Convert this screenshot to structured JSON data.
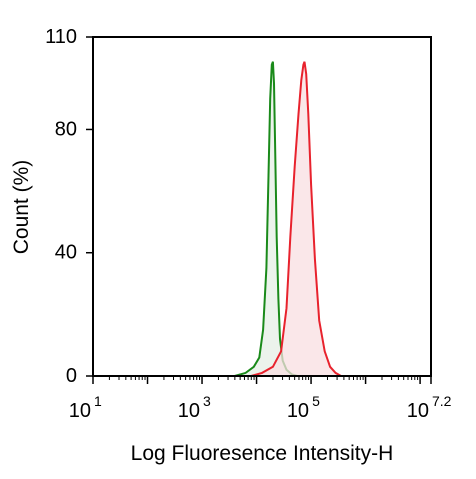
{
  "chart_data": {
    "type": "area",
    "xlabel": "Log Fluoresence Intensity-H",
    "ylabel": "Count (%)",
    "x_scale": "log10",
    "xlim": [
      1,
      7.2
    ],
    "ylim": [
      0,
      110
    ],
    "x_ticks": [
      {
        "value": 1,
        "base": "10",
        "exp": "1"
      },
      {
        "value": 3,
        "base": "10",
        "exp": "3"
      },
      {
        "value": 5,
        "base": "10",
        "exp": "5"
      },
      {
        "value": 7.2,
        "base": "10",
        "exp": "7.2"
      }
    ],
    "y_ticks": [
      {
        "value": 0,
        "label": "0"
      },
      {
        "value": 40,
        "label": "40"
      },
      {
        "value": 80,
        "label": "80"
      },
      {
        "value": 110,
        "label": "110"
      }
    ],
    "grid": false,
    "legend": "none",
    "series": [
      {
        "color": "#1a8a1a",
        "fill": "#e6efe6",
        "x": [
          3.6,
          3.8,
          3.95,
          4.05,
          4.12,
          4.18,
          4.22,
          4.25,
          4.28,
          4.3,
          4.32,
          4.34,
          4.37,
          4.4,
          4.43,
          4.48,
          4.55,
          4.65,
          4.75
        ],
        "y": [
          0,
          1,
          3,
          6,
          15,
          35,
          65,
          90,
          101,
          102,
          95,
          75,
          45,
          25,
          12,
          5,
          2,
          0.5,
          0
        ]
      },
      {
        "color": "#e8222d",
        "fill": "#f8dfe1",
        "x": [
          3.9,
          4.1,
          4.3,
          4.45,
          4.55,
          4.62,
          4.7,
          4.77,
          4.82,
          4.86,
          4.88,
          4.91,
          4.95,
          5.0,
          5.07,
          5.15,
          5.25,
          5.35,
          5.45,
          5.55
        ],
        "y": [
          0,
          1,
          3,
          8,
          22,
          45,
          68,
          85,
          96,
          101,
          102,
          98,
          85,
          62,
          38,
          18,
          8,
          3,
          1,
          0
        ]
      }
    ]
  }
}
